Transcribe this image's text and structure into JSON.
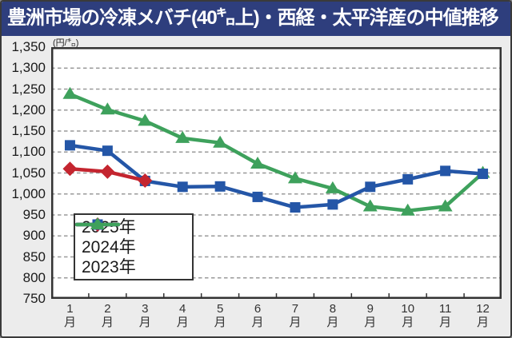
{
  "window": {
    "title": "豊洲市場の冷凍メバチ(40㌔上)・西経・太平洋産の中値推移"
  },
  "chart_data": {
    "type": "line",
    "title": "豊洲市場の冷凍メバチ(40㌔上)・西経・太平洋産の中値推移",
    "unit_label": "(円/㌔)",
    "categories": [
      "1",
      "2",
      "3",
      "4",
      "5",
      "6",
      "7",
      "8",
      "9",
      "10",
      "11",
      "12"
    ],
    "x_tick_suffix": "月",
    "y_axis": {
      "min": 750,
      "max": 1350,
      "step": 50,
      "gridlines": "dashed"
    },
    "series": [
      {
        "name": "2025年",
        "marker": "diamond",
        "color": "#c4252f",
        "values": [
          1060,
          1053,
          1032
        ]
      },
      {
        "name": "2024年",
        "marker": "square",
        "color": "#2456a7",
        "values": [
          1116,
          1103,
          1031,
          1017,
          1018,
          993,
          968,
          975,
          1017,
          1035,
          1055,
          1048
        ]
      },
      {
        "name": "2023年",
        "marker": "triangle",
        "color": "#3ea15c",
        "values": [
          1238,
          1201,
          1174,
          1133,
          1122,
          1072,
          1037,
          1013,
          970,
          960,
          970,
          1050
        ]
      }
    ],
    "legend": {
      "position": "inside-bottom-left",
      "entries": [
        "2025年",
        "2024年",
        "2023年"
      ]
    }
  },
  "colors": {
    "title_bar_bg": "#2e3e7d",
    "title_text": "#ffffff",
    "chart_bg": "#ececec",
    "plot_bg": "#ffffff",
    "plot_border": "#333333",
    "gridline": "#999999",
    "axis_text": "#1a1a1a"
  }
}
